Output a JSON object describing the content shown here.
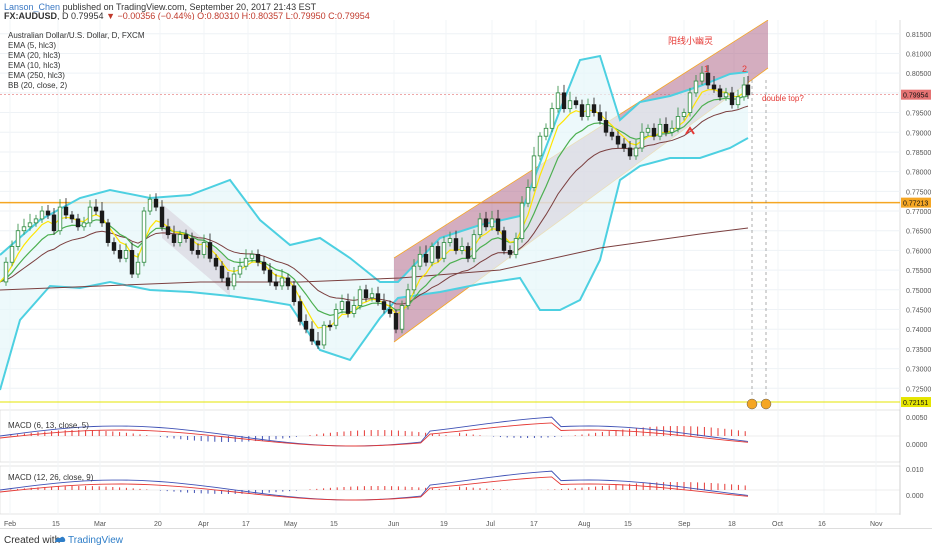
{
  "header": {
    "author": "Lanson_Chen",
    "published_text": "published on TradingView.com, September 20, 2017 21:43 EST",
    "symbol": "FX:AUDUSD",
    "interval": "D",
    "last": "0.79954",
    "change": "▼ −0.00356 (−0.44%)",
    "ohlc": "O:0.80310 H:0.80357 L:0.79950 C:0.79954"
  },
  "legend": {
    "title": "Australian Dollar/U.S. Dollar, D, FXCM",
    "items": [
      "EMA (5, hlc3)",
      "EMA (20, hlc3)",
      "EMA (10, hlc3)",
      "EMA (250, hlc3)",
      "BB (20, close, 2)"
    ]
  },
  "annotations": {
    "chinese_label": "阳线小幽灵",
    "peak1": "1",
    "peak2": "2",
    "double_top": "double top?"
  },
  "macd_fast_label": "MACD (6, 13, close, 5)",
  "macd_slow_label": "MACD (12, 26, close, 9)",
  "footer": {
    "created": "Created with",
    "brand": "TradingView"
  },
  "colors": {
    "up": "#2b8a3e",
    "down": "#1a1a1a",
    "bb": "#4dd0e1",
    "ema5": "#ffe500",
    "ema10": "#4caf50",
    "ema20": "#7b3f3f",
    "ema250": "#7b3f3f",
    "channel": "#b06a8a",
    "hline": "#f5a623",
    "hline2": "#e5e500",
    "price_line": "#e57373"
  },
  "chart_data": {
    "type": "candlestick",
    "x_ticks": [
      "Feb",
      "15",
      "Mar",
      "20",
      "Apr",
      "17",
      "May",
      "15",
      "Jun",
      "19",
      "Jul",
      "17",
      "Aug",
      "15",
      "Sep",
      "18",
      "Oct",
      "16",
      "Nov"
    ],
    "y_ticks": [
      "0.81500",
      "0.81000",
      "0.80500",
      "0.80000",
      "0.79500",
      "0.79000",
      "0.78500",
      "0.78000",
      "0.77500",
      "0.77000",
      "0.76500",
      "0.76000",
      "0.75500",
      "0.75000",
      "0.74500",
      "0.74000",
      "0.73500",
      "0.73000",
      "0.72500"
    ],
    "ylim": [
      0.7205,
      0.8185
    ],
    "price_labels": {
      "last": "0.79954",
      "line1": "0.77213",
      "line2": "0.72151"
    },
    "horizontal_lines": [
      0.77213,
      0.72151
    ],
    "close_path": [
      [
        0,
        0.752
      ],
      [
        6,
        0.757
      ],
      [
        12,
        0.761
      ],
      [
        18,
        0.765
      ],
      [
        24,
        0.766
      ],
      [
        30,
        0.767
      ],
      [
        36,
        0.768
      ],
      [
        42,
        0.77
      ],
      [
        48,
        0.769
      ],
      [
        54,
        0.765
      ],
      [
        60,
        0.771
      ],
      [
        66,
        0.769
      ],
      [
        72,
        0.768
      ],
      [
        78,
        0.766
      ],
      [
        84,
        0.767
      ],
      [
        90,
        0.771
      ],
      [
        96,
        0.77
      ],
      [
        102,
        0.767
      ],
      [
        108,
        0.762
      ],
      [
        114,
        0.76
      ],
      [
        120,
        0.758
      ],
      [
        126,
        0.76
      ],
      [
        132,
        0.754
      ],
      [
        138,
        0.757
      ],
      [
        144,
        0.77
      ],
      [
        150,
        0.773
      ],
      [
        156,
        0.771
      ],
      [
        162,
        0.766
      ],
      [
        168,
        0.764
      ],
      [
        174,
        0.762
      ],
      [
        180,
        0.764
      ],
      [
        186,
        0.763
      ],
      [
        192,
        0.76
      ],
      [
        198,
        0.759
      ],
      [
        204,
        0.762
      ],
      [
        210,
        0.758
      ],
      [
        216,
        0.756
      ],
      [
        222,
        0.753
      ],
      [
        228,
        0.751
      ],
      [
        234,
        0.754
      ],
      [
        240,
        0.756
      ],
      [
        246,
        0.758
      ],
      [
        252,
        0.759
      ],
      [
        258,
        0.757
      ],
      [
        264,
        0.755
      ],
      [
        270,
        0.752
      ],
      [
        276,
        0.751
      ],
      [
        282,
        0.753
      ],
      [
        288,
        0.751
      ],
      [
        294,
        0.747
      ],
      [
        300,
        0.742
      ],
      [
        306,
        0.74
      ],
      [
        312,
        0.737
      ],
      [
        318,
        0.736
      ],
      [
        324,
        0.741
      ],
      [
        330,
        0.741
      ],
      [
        336,
        0.745
      ],
      [
        342,
        0.747
      ],
      [
        348,
        0.744
      ],
      [
        354,
        0.746
      ],
      [
        360,
        0.75
      ],
      [
        366,
        0.748
      ],
      [
        372,
        0.749
      ],
      [
        378,
        0.747
      ],
      [
        384,
        0.745
      ],
      [
        390,
        0.744
      ],
      [
        396,
        0.74
      ],
      [
        402,
        0.746
      ],
      [
        408,
        0.75
      ],
      [
        414,
        0.756
      ],
      [
        420,
        0.759
      ],
      [
        426,
        0.757
      ],
      [
        432,
        0.761
      ],
      [
        438,
        0.758
      ],
      [
        444,
        0.762
      ],
      [
        450,
        0.763
      ],
      [
        456,
        0.76
      ],
      [
        462,
        0.761
      ],
      [
        468,
        0.758
      ],
      [
        474,
        0.764
      ],
      [
        480,
        0.768
      ],
      [
        486,
        0.766
      ],
      [
        492,
        0.768
      ],
      [
        498,
        0.765
      ],
      [
        504,
        0.76
      ],
      [
        510,
        0.759
      ],
      [
        516,
        0.763
      ],
      [
        522,
        0.772
      ],
      [
        528,
        0.776
      ],
      [
        534,
        0.784
      ],
      [
        540,
        0.789
      ],
      [
        546,
        0.791
      ],
      [
        552,
        0.796
      ],
      [
        558,
        0.8
      ],
      [
        564,
        0.796
      ],
      [
        570,
        0.798
      ],
      [
        576,
        0.797
      ],
      [
        582,
        0.794
      ],
      [
        588,
        0.797
      ],
      [
        594,
        0.795
      ],
      [
        600,
        0.793
      ],
      [
        606,
        0.79
      ],
      [
        612,
        0.789
      ],
      [
        618,
        0.787
      ],
      [
        624,
        0.786
      ],
      [
        630,
        0.784
      ],
      [
        636,
        0.786
      ],
      [
        642,
        0.79
      ],
      [
        648,
        0.791
      ],
      [
        654,
        0.789
      ],
      [
        660,
        0.792
      ],
      [
        666,
        0.79
      ],
      [
        672,
        0.791
      ],
      [
        678,
        0.794
      ],
      [
        684,
        0.795
      ],
      [
        690,
        0.8
      ],
      [
        696,
        0.803
      ],
      [
        702,
        0.805
      ],
      [
        708,
        0.802
      ],
      [
        714,
        0.801
      ],
      [
        720,
        0.799
      ],
      [
        726,
        0.8
      ],
      [
        732,
        0.797
      ],
      [
        738,
        0.799
      ],
      [
        744,
        0.802
      ],
      [
        748,
        0.7995
      ]
    ]
  }
}
